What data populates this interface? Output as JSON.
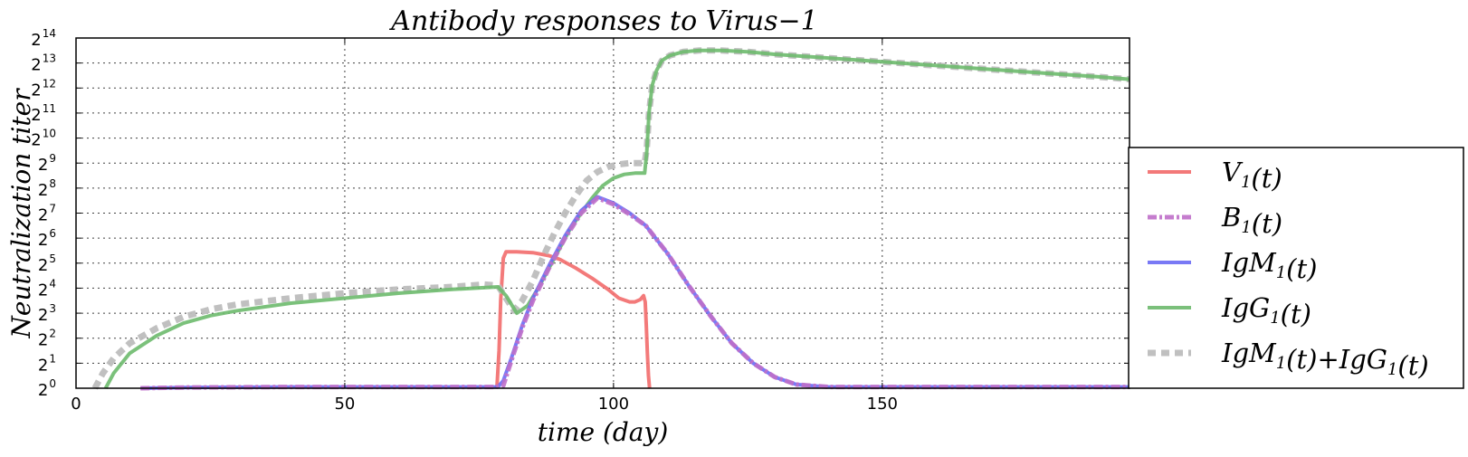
{
  "chart_data": {
    "type": "line",
    "title": "Antibody responses to Virus−1",
    "xlabel": "time (day)",
    "ylabel": "Neutralization  titer",
    "xlim": [
      0,
      196
    ],
    "ylim_log2": [
      0,
      14
    ],
    "y_scale": "log2",
    "grid": true,
    "legend_position": "right, outside plot",
    "x_ticks": [
      0,
      50,
      100,
      150
    ],
    "x_tick_labels": [
      "0",
      "50",
      "100",
      "150"
    ],
    "y_tick_labels": [
      "2",
      "2",
      "2",
      "2",
      "2",
      "2",
      "2",
      "2",
      "2",
      "2",
      "2",
      "2",
      "2",
      "2",
      "2"
    ],
    "y_tick_exponents": [
      "0",
      "1",
      "2",
      "3",
      "4",
      "5",
      "6",
      "7",
      "8",
      "9",
      "10",
      "11",
      "12",
      "13",
      "14"
    ],
    "series": [
      {
        "name": "V1(t)",
        "label_base": "V",
        "label_sub": "1",
        "label_tail": "(t)",
        "color": "#f26b6b",
        "style": "solid",
        "x": [
          78.3,
          78.7,
          79.0,
          79.5,
          80,
          82,
          85,
          88,
          90,
          93,
          96,
          99,
          101,
          103,
          104,
          105,
          105.6,
          105.9,
          106.1,
          106.3,
          106.5,
          106.7
        ],
        "y": [
          0,
          1.5,
          3.5,
          5.2,
          5.45,
          5.45,
          5.42,
          5.3,
          5.15,
          4.8,
          4.4,
          3.95,
          3.6,
          3.45,
          3.45,
          3.55,
          3.7,
          3.45,
          2.5,
          1.4,
          0.5,
          0
        ]
      },
      {
        "name": "B1(t)",
        "label_base": "B",
        "label_sub": "1",
        "label_tail": "(t)",
        "color": "#bf6fc9",
        "style": "dash-dot",
        "x": [
          12,
          20,
          40,
          60,
          75,
          78,
          79.5,
          81,
          83,
          85,
          88,
          91,
          94,
          97,
          100,
          103,
          106,
          110,
          114,
          118,
          122,
          126,
          130,
          134,
          140,
          150,
          160,
          175,
          196
        ],
        "y": [
          0,
          0.03,
          0.05,
          0.05,
          0.05,
          0.05,
          0.1,
          1.1,
          2.4,
          3.5,
          4.8,
          6.0,
          7.0,
          7.6,
          7.35,
          6.95,
          6.5,
          5.4,
          4.1,
          2.9,
          1.8,
          1.0,
          0.45,
          0.15,
          0.05,
          0.05,
          0.05,
          0.05,
          0.05
        ]
      },
      {
        "name": "IgM1(t)",
        "label_base": "IgM",
        "label_sub": "1",
        "label_tail": "(t)",
        "color": "#6b6bf5",
        "style": "solid",
        "x": [
          12,
          20,
          40,
          60,
          75,
          78.5,
          79.5,
          81,
          83,
          85,
          88,
          91,
          94,
          97,
          100,
          103,
          106,
          110,
          114,
          118,
          122,
          126,
          130,
          134,
          140,
          150,
          160,
          175,
          196
        ],
        "y": [
          0,
          0.03,
          0.05,
          0.05,
          0.05,
          0.05,
          0.3,
          1.2,
          2.5,
          3.6,
          4.9,
          6.1,
          7.1,
          7.65,
          7.4,
          7.0,
          6.5,
          5.4,
          4.1,
          2.9,
          1.8,
          1.0,
          0.45,
          0.15,
          0.05,
          0.05,
          0.05,
          0.05,
          0.05
        ]
      },
      {
        "name": "IgG1(t)",
        "label_base": "IgG",
        "label_sub": "1",
        "label_tail": "(t)",
        "color": "#6dba6d",
        "style": "solid",
        "x": [
          5.5,
          7,
          10,
          15,
          20,
          25,
          30,
          40,
          50,
          60,
          70,
          78.5,
          80,
          82,
          84,
          86,
          88,
          90,
          92,
          94,
          96,
          98,
          100,
          102,
          104,
          105.8,
          106.2,
          106.6,
          107.2,
          108,
          109,
          110.5,
          113,
          116,
          120,
          125,
          130,
          140,
          150,
          160,
          170,
          180,
          190,
          196
        ],
        "y": [
          0,
          0.6,
          1.4,
          2.1,
          2.6,
          2.9,
          3.1,
          3.4,
          3.6,
          3.8,
          3.95,
          4.05,
          3.7,
          3.0,
          3.3,
          4.0,
          4.8,
          5.6,
          6.4,
          7.0,
          7.6,
          8.1,
          8.4,
          8.55,
          8.6,
          8.6,
          9.5,
          11.0,
          12.1,
          12.7,
          13.1,
          13.3,
          13.45,
          13.5,
          13.5,
          13.45,
          13.35,
          13.2,
          13.05,
          12.9,
          12.75,
          12.6,
          12.45,
          12.35
        ]
      },
      {
        "name": "IgM1(t)+IgG1(t)",
        "label_base": "IgM",
        "label_sub": "1",
        "label_tail": "(t)+",
        "label_base2": "IgG",
        "label_sub2": "1",
        "label_tail2": "(t)",
        "color": "#bdbdbd",
        "style": "dotted",
        "x": [
          3.5,
          5,
          7,
          10,
          15,
          20,
          25,
          30,
          40,
          50,
          60,
          70,
          76,
          78.5,
          80,
          81.5,
          83,
          85,
          87,
          89,
          91,
          93,
          95,
          97,
          99,
          101,
          103,
          105.8,
          106.2,
          106.6,
          107.2,
          108,
          109,
          110.5,
          113,
          116,
          120,
          125,
          130,
          140,
          150,
          160,
          170,
          180,
          190,
          196
        ],
        "y": [
          0,
          0.6,
          1.2,
          1.8,
          2.4,
          2.85,
          3.15,
          3.35,
          3.6,
          3.8,
          3.95,
          4.05,
          4.15,
          4.1,
          3.6,
          3.1,
          3.5,
          4.3,
          5.3,
          6.2,
          7.0,
          7.7,
          8.3,
          8.65,
          8.85,
          8.95,
          9.0,
          9.0,
          9.6,
          11.0,
          12.1,
          12.7,
          13.1,
          13.3,
          13.45,
          13.5,
          13.5,
          13.45,
          13.35,
          13.2,
          13.05,
          12.9,
          12.75,
          12.6,
          12.45,
          12.35
        ]
      }
    ]
  }
}
